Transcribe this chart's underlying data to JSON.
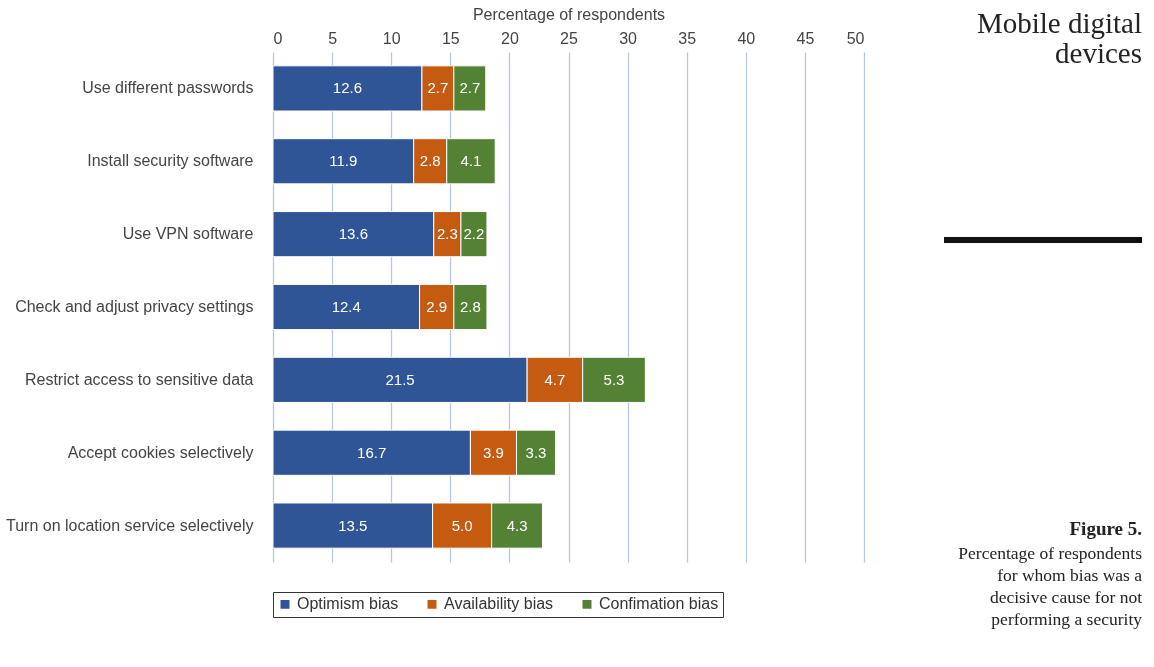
{
  "chart_data": {
    "type": "bar",
    "orientation": "horizontal",
    "stacked": true,
    "xlabel": "Percentage of respondents",
    "categories": [
      "Use different passwords",
      "Install security software",
      "Use VPN software",
      "Check and adjust privacy settings",
      "Restrict access to sensitive data",
      "Accept cookies selectively",
      "Turn on location service selectively"
    ],
    "series": [
      {
        "name": "Optimism bias",
        "color": "#2f5597",
        "values": [
          12.6,
          11.9,
          13.6,
          12.4,
          21.5,
          16.7,
          13.5
        ],
        "value_labels": [
          "12.6",
          "11.9",
          "13.6",
          "12.4",
          "21.5",
          "16.7",
          "13.5"
        ]
      },
      {
        "name": "Availability bias",
        "color": "#c55a11",
        "values": [
          2.7,
          2.8,
          2.3,
          2.9,
          4.7,
          3.9,
          5.0
        ],
        "value_labels": [
          "2.7",
          "2.8",
          "2.3",
          "2.9",
          "4.7",
          "3.9",
          "5.0"
        ]
      },
      {
        "name": "Confimation bias",
        "color": "#548235",
        "values": [
          2.7,
          4.1,
          2.2,
          2.8,
          5.3,
          3.3,
          4.3
        ],
        "value_labels": [
          "2.7",
          "4.1",
          "2.2",
          "2.8",
          "5.3",
          "3.3",
          "4.3"
        ]
      }
    ],
    "xlim": [
      0,
      50
    ],
    "xticks": [
      0,
      5,
      10,
      15,
      20,
      25,
      30,
      35,
      40,
      45,
      50
    ],
    "grid": "x",
    "legend": "bottom",
    "annotations": [
      "Mobile digital devices",
      "Figure 5.",
      "Percentage of respondents for whom bias was a decisive cause for not performing a security"
    ]
  }
}
